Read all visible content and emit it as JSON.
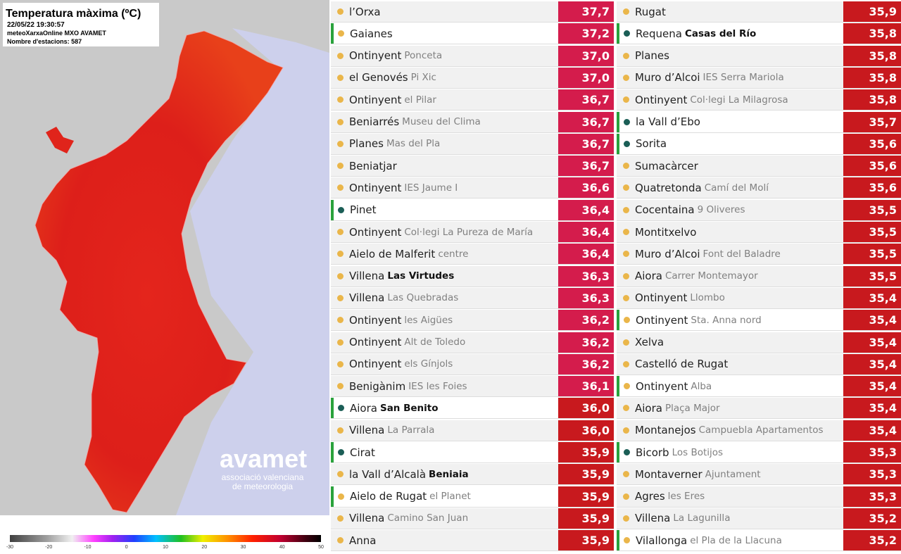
{
  "map": {
    "header": {
      "title": "Temperatura màxima (ºC)",
      "timestamp": "22/05/22 19:30:57",
      "source": "meteoXarxaOnline MXO AVAMET",
      "stations": "Nombre d'estacions: 587"
    },
    "logo": {
      "name": "avamet",
      "line1": "associació valenciana",
      "line2": "de meteorologia"
    },
    "colorbar": {
      "range": [
        -30,
        50
      ],
      "ticks": [
        -30,
        -20,
        -10,
        0,
        10,
        20,
        30,
        40,
        50
      ]
    }
  },
  "tables": [
    {
      "rows": [
        {
          "name": "l’Orxa",
          "value": "37,7",
          "value_color": "#d41c4c",
          "dot_color": "#eab64a"
        },
        {
          "name": "Gaianes",
          "value": "37,2",
          "value_color": "#d41c4c",
          "dot_color": "#eab64a",
          "highlight": true
        },
        {
          "name": "Ontinyent",
          "detail": "Ponceta",
          "value": "37,0",
          "value_color": "#d41c4c",
          "dot_color": "#eab64a"
        },
        {
          "name": "el Genovés",
          "detail": "Pi Xic",
          "value": "37,0",
          "value_color": "#d41c4c",
          "dot_color": "#eab64a"
        },
        {
          "name": "Ontinyent",
          "detail": "el Pilar",
          "value": "36,7",
          "value_color": "#d41c4c",
          "dot_color": "#eab64a"
        },
        {
          "name": "Beniarrés",
          "detail": "Museu del Clima",
          "value": "36,7",
          "value_color": "#d41c4c",
          "dot_color": "#eab64a"
        },
        {
          "name": "Planes",
          "detail": "Mas del Pla",
          "value": "36,7",
          "value_color": "#d41c4c",
          "dot_color": "#eab64a"
        },
        {
          "name": "Beniatjar",
          "value": "36,7",
          "value_color": "#d41c4c",
          "dot_color": "#eab64a"
        },
        {
          "name": "Ontinyent",
          "detail": "IES Jaume I",
          "value": "36,6",
          "value_color": "#d41c4c",
          "dot_color": "#eab64a"
        },
        {
          "name": "Pinet",
          "value": "36,4",
          "value_color": "#d41c4c",
          "dot_color": "#1b5e56",
          "highlight": true
        },
        {
          "name": "Ontinyent",
          "detail": "Col·legi La Pureza de María",
          "value": "36,4",
          "value_color": "#d41c4c",
          "dot_color": "#eab64a"
        },
        {
          "name": "Aielo de Malferit",
          "detail": "centre",
          "value": "36,4",
          "value_color": "#d41c4c",
          "dot_color": "#eab64a"
        },
        {
          "name": "Villena",
          "detail": "Las Virtudes",
          "detail_bold": true,
          "value": "36,3",
          "value_color": "#d41c4c",
          "dot_color": "#eab64a"
        },
        {
          "name": "Villena",
          "detail": "Las Quebradas",
          "value": "36,3",
          "value_color": "#d41c4c",
          "dot_color": "#eab64a"
        },
        {
          "name": "Ontinyent",
          "detail": "les Aigües",
          "value": "36,2",
          "value_color": "#d41c4c",
          "dot_color": "#eab64a"
        },
        {
          "name": "Ontinyent",
          "detail": "Alt de Toledo",
          "value": "36,2",
          "value_color": "#d41c4c",
          "dot_color": "#eab64a"
        },
        {
          "name": "Ontinyent",
          "detail": "els Gínjols",
          "value": "36,2",
          "value_color": "#d41c4c",
          "dot_color": "#eab64a"
        },
        {
          "name": "Benigànim",
          "detail": "IES les Foies",
          "value": "36,1",
          "value_color": "#d41c4c",
          "dot_color": "#eab64a"
        },
        {
          "name": "Aiora",
          "detail": "San Benito",
          "detail_bold": true,
          "value": "36,0",
          "value_color": "#c8191e",
          "dot_color": "#1b5e56",
          "highlight": true
        },
        {
          "name": "Villena",
          "detail": "La Parrala",
          "value": "36,0",
          "value_color": "#c8191e",
          "dot_color": "#eab64a"
        },
        {
          "name": "Cirat",
          "value": "35,9",
          "value_color": "#c8191e",
          "dot_color": "#1b5e56",
          "highlight": true
        },
        {
          "name": "la Vall d’Alcalà",
          "detail": "Beniaia",
          "detail_bold": true,
          "value": "35,9",
          "value_color": "#c8191e",
          "dot_color": "#eab64a"
        },
        {
          "name": "Aielo de Rugat",
          "detail": "el Planet",
          "value": "35,9",
          "value_color": "#c8191e",
          "dot_color": "#eab64a",
          "highlight": true
        },
        {
          "name": "Villena",
          "detail": "Camino San Juan",
          "value": "35,9",
          "value_color": "#c8191e",
          "dot_color": "#eab64a"
        },
        {
          "name": "Anna",
          "value": "35,9",
          "value_color": "#c8191e",
          "dot_color": "#eab64a"
        }
      ]
    },
    {
      "rows": [
        {
          "name": "Rugat",
          "value": "35,9",
          "value_color": "#c8191e",
          "dot_color": "#eab64a"
        },
        {
          "name": "Requena",
          "detail": "Casas del Río",
          "detail_bold": true,
          "value": "35,8",
          "value_color": "#c8191e",
          "dot_color": "#1b5e56",
          "highlight": true
        },
        {
          "name": "Planes",
          "value": "35,8",
          "value_color": "#c8191e",
          "dot_color": "#eab64a"
        },
        {
          "name": "Muro d’Alcoi",
          "detail": "IES Serra Mariola",
          "value": "35,8",
          "value_color": "#c8191e",
          "dot_color": "#eab64a"
        },
        {
          "name": "Ontinyent",
          "detail": "Col·legi La Milagrosa",
          "value": "35,8",
          "value_color": "#c8191e",
          "dot_color": "#eab64a"
        },
        {
          "name": "la Vall d’Ebo",
          "value": "35,7",
          "value_color": "#c8191e",
          "dot_color": "#1b5e56",
          "highlight": true
        },
        {
          "name": "Sorita",
          "value": "35,6",
          "value_color": "#c8191e",
          "dot_color": "#1b5e56",
          "highlight": true
        },
        {
          "name": "Sumacàrcer",
          "value": "35,6",
          "value_color": "#c8191e",
          "dot_color": "#eab64a"
        },
        {
          "name": "Quatretonda",
          "detail": "Camí del Molí",
          "value": "35,6",
          "value_color": "#c8191e",
          "dot_color": "#eab64a"
        },
        {
          "name": "Cocentaina",
          "detail": "9 Oliveres",
          "value": "35,5",
          "value_color": "#c8191e",
          "dot_color": "#eab64a"
        },
        {
          "name": "Montitxelvo",
          "value": "35,5",
          "value_color": "#c8191e",
          "dot_color": "#eab64a"
        },
        {
          "name": "Muro d’Alcoi",
          "detail": "Font del Baladre",
          "value": "35,5",
          "value_color": "#c8191e",
          "dot_color": "#eab64a"
        },
        {
          "name": "Aiora",
          "detail": "Carrer Montemayor",
          "value": "35,5",
          "value_color": "#c8191e",
          "dot_color": "#eab64a"
        },
        {
          "name": "Ontinyent",
          "detail": "Llombo",
          "value": "35,4",
          "value_color": "#c8191e",
          "dot_color": "#eab64a"
        },
        {
          "name": "Ontinyent",
          "detail": "Sta. Anna nord",
          "value": "35,4",
          "value_color": "#c8191e",
          "dot_color": "#eab64a",
          "highlight": true
        },
        {
          "name": "Xelva",
          "value": "35,4",
          "value_color": "#c8191e",
          "dot_color": "#eab64a"
        },
        {
          "name": "Castelló de Rugat",
          "value": "35,4",
          "value_color": "#c8191e",
          "dot_color": "#eab64a"
        },
        {
          "name": "Ontinyent",
          "detail": "Alba",
          "value": "35,4",
          "value_color": "#c8191e",
          "dot_color": "#eab64a",
          "highlight": true
        },
        {
          "name": "Aiora",
          "detail": "Plaça Major",
          "value": "35,4",
          "value_color": "#c8191e",
          "dot_color": "#eab64a"
        },
        {
          "name": "Montanejos",
          "detail": "Campuebla Apartamentos",
          "value": "35,4",
          "value_color": "#c8191e",
          "dot_color": "#eab64a"
        },
        {
          "name": "Bicorb",
          "detail": "Los Botijos",
          "value": "35,3",
          "value_color": "#c8191e",
          "dot_color": "#1b5e56",
          "highlight": true
        },
        {
          "name": "Montaverner",
          "detail": "Ajuntament",
          "value": "35,3",
          "value_color": "#c8191e",
          "dot_color": "#eab64a"
        },
        {
          "name": "Agres",
          "detail": "les Eres",
          "value": "35,3",
          "value_color": "#c8191e",
          "dot_color": "#eab64a"
        },
        {
          "name": "Villena",
          "detail": "La Lagunilla",
          "value": "35,2",
          "value_color": "#c8191e",
          "dot_color": "#eab64a"
        },
        {
          "name": "Vilallonga",
          "detail": "el Pla de la Llacuna",
          "value": "35,2",
          "value_color": "#c8191e",
          "dot_color": "#eab64a",
          "highlight": true
        }
      ]
    }
  ]
}
